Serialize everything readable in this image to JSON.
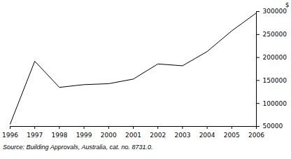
{
  "chart_data": {
    "type": "line",
    "x": [
      1996,
      1997,
      1998,
      1999,
      2000,
      2001,
      2002,
      2003,
      2004,
      2005,
      2006
    ],
    "values": [
      55000,
      192000,
      135000,
      141000,
      143000,
      153000,
      186000,
      182000,
      213000,
      258000,
      297000
    ],
    "color": "#000000",
    "xlim": [
      1996,
      2006
    ],
    "xticks": [
      1996,
      1997,
      1998,
      1999,
      2000,
      2001,
      2002,
      2003,
      2004,
      2005,
      2006
    ],
    "ylim": [
      50000,
      300000
    ],
    "yticks": [
      50000,
      100000,
      150000,
      200000,
      250000,
      300000
    ],
    "y_label": "$",
    "source": "Source: Building Approvals, Australia, cat. no. 8731.0.",
    "grid": false
  }
}
